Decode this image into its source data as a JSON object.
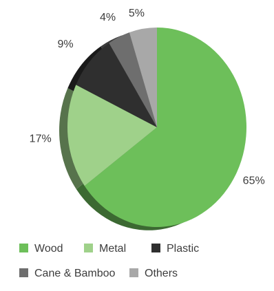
{
  "chart_data": {
    "type": "pie",
    "title": "",
    "categories": [
      "Wood",
      "Metal",
      "Plastic",
      "Cane & Bamboo",
      "Others"
    ],
    "values": [
      65,
      17,
      9,
      4,
      5
    ],
    "value_labels": [
      "65%",
      "17%",
      "9%",
      "4%",
      "5%"
    ],
    "colors": [
      "#6dbf5a",
      "#9fd18a",
      "#2f2f2f",
      "#6e6e6e",
      "#a8a8a8"
    ],
    "legend_placement": "bottom",
    "style": "3d-tilted-pie"
  }
}
